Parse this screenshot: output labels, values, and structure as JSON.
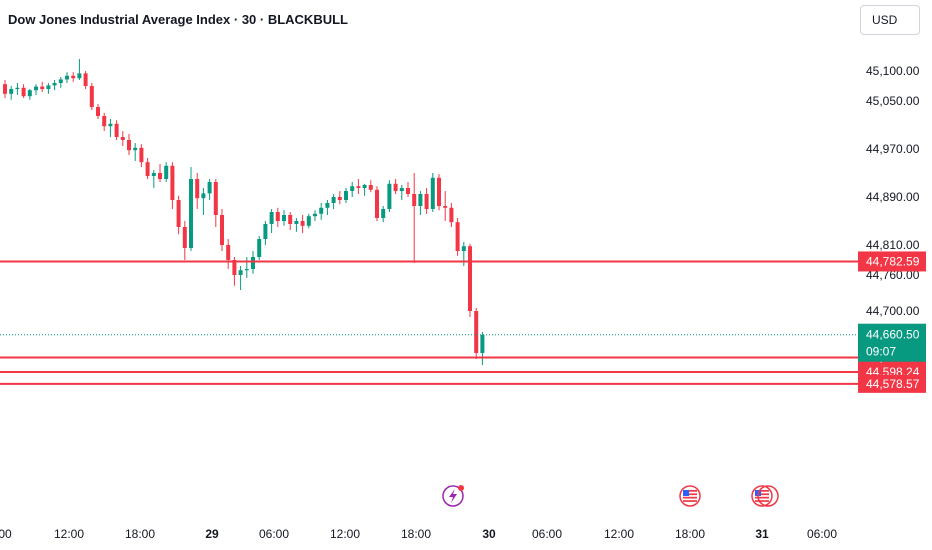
{
  "header": {
    "title": "Dow Jones Industrial Average Index · 30 · BLACKBULL",
    "currency_button": "USD"
  },
  "chart_data": {
    "type": "candlestick",
    "symbol": "Dow Jones Industrial Average Index",
    "interval": "30",
    "exchange": "BLACKBULL",
    "currency": "USD",
    "y_ticks": [
      45100,
      45050,
      44970,
      44890,
      44810,
      44760,
      44700
    ],
    "y_tick_labels": [
      "45,100.00",
      "45,050.00",
      "44,970.00",
      "44,890.00",
      "44,810.00",
      "44,760.00",
      "44,700.00"
    ],
    "x_tick_labels": [
      "00",
      "12:00",
      "18:00",
      "29",
      "06:00",
      "12:00",
      "18:00",
      "30",
      "06:00",
      "12:00",
      "18:00",
      "31",
      "06:00"
    ],
    "x_tick_bold": [
      false,
      false,
      false,
      true,
      false,
      false,
      false,
      true,
      false,
      false,
      false,
      true,
      false
    ],
    "horizontal_levels": [
      {
        "label": "44,782.59",
        "value": 44782.59
      },
      {
        "label": "44,622.50",
        "value": 44622.5
      },
      {
        "label": "44,598.24",
        "value": 44598.24
      },
      {
        "label": "44,578.57",
        "value": 44578.57
      }
    ],
    "last_price": {
      "label": "44,660.50",
      "value": 44660.5,
      "countdown": "09:07"
    },
    "ohlc": [
      [
        45078,
        45085,
        45055,
        45062
      ],
      [
        45062,
        45075,
        45052,
        45070
      ],
      [
        45070,
        45080,
        45060,
        45072
      ],
      [
        45072,
        45078,
        45055,
        45058
      ],
      [
        45058,
        45070,
        45052,
        45068
      ],
      [
        45068,
        45078,
        45060,
        45074
      ],
      [
        45074,
        45082,
        45065,
        45070
      ],
      [
        45070,
        45080,
        45062,
        45076
      ],
      [
        45076,
        45085,
        45068,
        45080
      ],
      [
        45080,
        45090,
        45072,
        45086
      ],
      [
        45086,
        45098,
        45080,
        45092
      ],
      [
        45092,
        45098,
        45082,
        45088
      ],
      [
        45088,
        45120,
        45085,
        45096
      ],
      [
        45096,
        45100,
        45070,
        45075
      ],
      [
        45075,
        45080,
        45035,
        45040
      ],
      [
        45040,
        45045,
        45020,
        45025
      ],
      [
        45025,
        45030,
        45000,
        45008
      ],
      [
        45008,
        45020,
        44990,
        45012
      ],
      [
        45012,
        45018,
        44985,
        44990
      ],
      [
        44990,
        45000,
        44975,
        44985
      ],
      [
        44985,
        44995,
        44960,
        44968
      ],
      [
        44968,
        44980,
        44950,
        44972
      ],
      [
        44972,
        44978,
        44940,
        44948
      ],
      [
        44948,
        44955,
        44920,
        44925
      ],
      [
        44925,
        44935,
        44905,
        44930
      ],
      [
        44930,
        44945,
        44915,
        44920
      ],
      [
        44920,
        44948,
        44915,
        44942
      ],
      [
        44942,
        44948,
        44870,
        44885
      ],
      [
        44885,
        44892,
        44828,
        44840
      ],
      [
        44840,
        44850,
        44785,
        44805
      ],
      [
        44805,
        44940,
        44800,
        44920
      ],
      [
        44920,
        44930,
        44870,
        44888
      ],
      [
        44888,
        44905,
        44860,
        44896
      ],
      [
        44896,
        44920,
        44885,
        44915
      ],
      [
        44915,
        44920,
        44840,
        44860
      ],
      [
        44860,
        44870,
        44800,
        44810
      ],
      [
        44810,
        44820,
        44770,
        44785
      ],
      [
        44785,
        44790,
        44742,
        44760
      ],
      [
        44760,
        44775,
        44735,
        44768
      ],
      [
        44768,
        44790,
        44755,
        44770
      ],
      [
        44770,
        44800,
        44762,
        44790
      ],
      [
        44790,
        44825,
        44785,
        44820
      ],
      [
        44820,
        44850,
        44810,
        44845
      ],
      [
        44845,
        44870,
        44830,
        44865
      ],
      [
        44865,
        44872,
        44840,
        44850
      ],
      [
        44850,
        44868,
        44842,
        44860
      ],
      [
        44860,
        44865,
        44835,
        44845
      ],
      [
        44845,
        44855,
        44832,
        44850
      ],
      [
        44850,
        44860,
        44830,
        44842
      ],
      [
        44842,
        44862,
        44838,
        44858
      ],
      [
        44858,
        44868,
        44850,
        44862
      ],
      [
        44862,
        44880,
        44852,
        44872
      ],
      [
        44872,
        44885,
        44860,
        44880
      ],
      [
        44880,
        44895,
        44870,
        44890
      ],
      [
        44890,
        44900,
        44878,
        44885
      ],
      [
        44885,
        44905,
        44880,
        44900
      ],
      [
        44900,
        44915,
        44890,
        44908
      ],
      [
        44908,
        44920,
        44895,
        44905
      ],
      [
        44905,
        44912,
        44892,
        44910
      ],
      [
        44910,
        44918,
        44898,
        44902
      ],
      [
        44902,
        44908,
        44850,
        44855
      ],
      [
        44855,
        44875,
        44848,
        44870
      ],
      [
        44870,
        44918,
        44865,
        44912
      ],
      [
        44912,
        44920,
        44895,
        44900
      ],
      [
        44900,
        44910,
        44885,
        44905
      ],
      [
        44905,
        44915,
        44890,
        44895
      ],
      [
        44895,
        44930,
        44780,
        44875
      ],
      [
        44875,
        44900,
        44860,
        44895
      ],
      [
        44895,
        44905,
        44862,
        44870
      ],
      [
        44870,
        44930,
        44865,
        44922
      ],
      [
        44922,
        44928,
        44868,
        44875
      ],
      [
        44875,
        44900,
        44850,
        44872
      ],
      [
        44872,
        44880,
        44840,
        44848
      ],
      [
        44848,
        44855,
        44792,
        44800
      ],
      [
        44800,
        44815,
        44775,
        44808
      ],
      [
        44808,
        44812,
        44690,
        44700
      ],
      [
        44700,
        44705,
        44620,
        44630
      ],
      [
        44630,
        44665,
        44610,
        44660
      ]
    ]
  },
  "events": [
    {
      "name": "flash-event-icon",
      "color": "#9c27b0"
    },
    {
      "name": "us-flag-event-icon",
      "color": "#f23645"
    },
    {
      "name": "us-flag-event-icon-2",
      "color": "#f23645"
    }
  ],
  "colors": {
    "up": "#089981",
    "down": "#f23645",
    "level": "#f23645",
    "text": "#131722",
    "muted": "#787b86"
  }
}
